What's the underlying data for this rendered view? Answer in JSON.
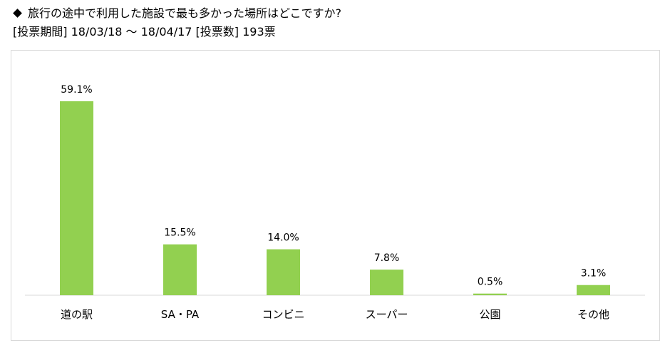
{
  "header": {
    "title": "旅行の途中で利用した施設で最も多かった場所はどこですか?",
    "subtitle": "[投票期間] 18/03/18 〜 18/04/17 [投票数] 193票"
  },
  "chart_data": {
    "type": "bar",
    "categories": [
      "道の駅",
      "SA・PA",
      "コンビニ",
      "スーパー",
      "公園",
      "その他"
    ],
    "values": [
      59.1,
      15.5,
      14.0,
      7.8,
      0.5,
      3.1
    ],
    "data_labels": [
      "59.1%",
      "15.5%",
      "14.0%",
      "7.8%",
      "0.5%",
      "3.1%"
    ],
    "ylim": [
      0,
      60
    ],
    "grid": false,
    "legend": "none",
    "bar_color": "#92d050"
  }
}
